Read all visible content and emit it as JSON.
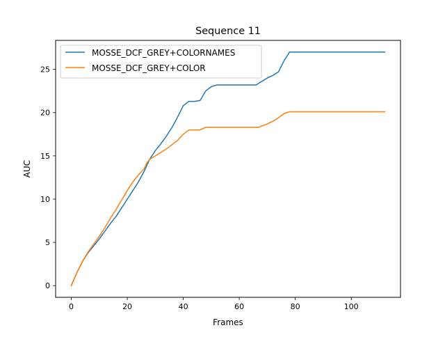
{
  "chart_data": {
    "type": "line",
    "title": "Sequence 11",
    "xlabel": "Frames",
    "ylabel": "AUC",
    "xlim": [
      -5.6,
      117.6
    ],
    "ylim": [
      -1.35,
      28.35
    ],
    "xticks": [
      0,
      20,
      40,
      60,
      80,
      100
    ],
    "yticks": [
      0,
      5,
      10,
      15,
      20,
      25
    ],
    "grid": false,
    "legend_position": "top-left",
    "series": [
      {
        "name": "MOSSE_DCF_GREY+COLORNAMES",
        "color": "#1f77b4",
        "points": [
          [
            0,
            0
          ],
          [
            2,
            1.5
          ],
          [
            4,
            2.8
          ],
          [
            6,
            3.8
          ],
          [
            8,
            4.6
          ],
          [
            10,
            5.4
          ],
          [
            12,
            6.3
          ],
          [
            14,
            7.2
          ],
          [
            16,
            8.0
          ],
          [
            18,
            9.0
          ],
          [
            20,
            10.0
          ],
          [
            22,
            11.0
          ],
          [
            24,
            12.0
          ],
          [
            26,
            13.2
          ],
          [
            28,
            14.6
          ],
          [
            30,
            15.6
          ],
          [
            32,
            16.4
          ],
          [
            34,
            17.3
          ],
          [
            36,
            18.3
          ],
          [
            38,
            19.5
          ],
          [
            40,
            20.8
          ],
          [
            42,
            21.3
          ],
          [
            44,
            21.3
          ],
          [
            46,
            21.4
          ],
          [
            48,
            22.5
          ],
          [
            50,
            23.0
          ],
          [
            52,
            23.2
          ],
          [
            54,
            23.2
          ],
          [
            56,
            23.2
          ],
          [
            58,
            23.2
          ],
          [
            60,
            23.2
          ],
          [
            62,
            23.2
          ],
          [
            64,
            23.2
          ],
          [
            66,
            23.2
          ],
          [
            68,
            23.6
          ],
          [
            70,
            24.0
          ],
          [
            72,
            24.3
          ],
          [
            74,
            24.7
          ],
          [
            76,
            26.0
          ],
          [
            78,
            27.0
          ],
          [
            80,
            27.0
          ],
          [
            85,
            27.0
          ],
          [
            90,
            27.0
          ],
          [
            95,
            27.0
          ],
          [
            100,
            27.0
          ],
          [
            105,
            27.0
          ],
          [
            112,
            27.0
          ]
        ]
      },
      {
        "name": "MOSSE_DCF_GREY+COLOR",
        "color": "#ff7f0e",
        "points": [
          [
            0,
            0
          ],
          [
            2,
            1.5
          ],
          [
            4,
            2.8
          ],
          [
            6,
            3.9
          ],
          [
            8,
            4.8
          ],
          [
            10,
            5.7
          ],
          [
            12,
            6.7
          ],
          [
            14,
            7.8
          ],
          [
            16,
            8.8
          ],
          [
            18,
            9.9
          ],
          [
            20,
            11.0
          ],
          [
            22,
            12.0
          ],
          [
            24,
            12.8
          ],
          [
            26,
            13.5
          ],
          [
            27,
            14.2
          ],
          [
            28,
            14.6
          ],
          [
            30,
            15.0
          ],
          [
            32,
            15.4
          ],
          [
            34,
            15.8
          ],
          [
            36,
            16.3
          ],
          [
            38,
            16.8
          ],
          [
            40,
            17.5
          ],
          [
            42,
            18.0
          ],
          [
            44,
            18.0
          ],
          [
            46,
            18.0
          ],
          [
            48,
            18.3
          ],
          [
            50,
            18.3
          ],
          [
            55,
            18.3
          ],
          [
            60,
            18.3
          ],
          [
            65,
            18.3
          ],
          [
            67,
            18.3
          ],
          [
            70,
            18.7
          ],
          [
            72,
            19.0
          ],
          [
            74,
            19.4
          ],
          [
            76,
            19.9
          ],
          [
            78,
            20.1
          ],
          [
            80,
            20.1
          ],
          [
            85,
            20.1
          ],
          [
            90,
            20.1
          ],
          [
            95,
            20.1
          ],
          [
            100,
            20.1
          ],
          [
            105,
            20.1
          ],
          [
            112,
            20.1
          ]
        ]
      }
    ]
  }
}
